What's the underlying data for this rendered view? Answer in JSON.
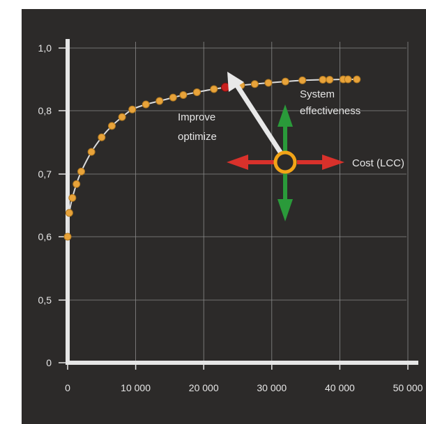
{
  "chart_data": {
    "type": "scatter",
    "xlim": [
      0,
      50000
    ],
    "ylim": [
      0,
      1.0
    ],
    "x_ticks": [
      0,
      10000,
      20000,
      30000,
      40000,
      50000
    ],
    "x_tick_labels": [
      "0",
      "10 000",
      "20 000",
      "30 000",
      "40 000",
      "50 000"
    ],
    "y_ticks": [
      0,
      0.5,
      0.6,
      0.7,
      0.8,
      1.0
    ],
    "y_tick_labels": [
      "0",
      "0,5",
      "0,6",
      "0,7",
      "0,8",
      "1,0"
    ],
    "grid": true,
    "points": [
      {
        "x": 0,
        "y": 0.6
      },
      {
        "x": 250,
        "y": 0.638
      },
      {
        "x": 700,
        "y": 0.662
      },
      {
        "x": 1300,
        "y": 0.684
      },
      {
        "x": 2000,
        "y": 0.704
      },
      {
        "x": 3500,
        "y": 0.735
      },
      {
        "x": 5000,
        "y": 0.758
      },
      {
        "x": 6500,
        "y": 0.776
      },
      {
        "x": 8000,
        "y": 0.79
      },
      {
        "x": 9500,
        "y": 0.804
      },
      {
        "x": 11500,
        "y": 0.82
      },
      {
        "x": 13500,
        "y": 0.831
      },
      {
        "x": 15500,
        "y": 0.842
      },
      {
        "x": 17000,
        "y": 0.85
      },
      {
        "x": 19000,
        "y": 0.859
      },
      {
        "x": 21500,
        "y": 0.869
      },
      {
        "x": 25500,
        "y": 0.881
      },
      {
        "x": 27500,
        "y": 0.885
      },
      {
        "x": 29500,
        "y": 0.889
      },
      {
        "x": 32000,
        "y": 0.893
      },
      {
        "x": 34500,
        "y": 0.897
      },
      {
        "x": 37500,
        "y": 0.899
      },
      {
        "x": 38500,
        "y": 0.899
      },
      {
        "x": 40500,
        "y": 0.9
      },
      {
        "x": 41200,
        "y": 0.9
      },
      {
        "x": 42500,
        "y": 0.9
      }
    ],
    "highlight_point": {
      "x": 23200,
      "y": 0.875
    },
    "colors": {
      "background": "#2c2a29",
      "axis": "#e6e6e6",
      "grid": "#8a8a8a",
      "curve": "#dcdcdc",
      "point": "#e8a33a",
      "highlight": "#c8201e",
      "text": "#e6e6e6",
      "arrow_cost": "#d9312b",
      "arrow_effectiveness": "#2a9a3a",
      "arrow_improve": "#e8e8e8",
      "ring": "#f2a417"
    }
  },
  "annotations": {
    "improve_line1": "Improve",
    "improve_line2": "optimize",
    "system_line1": "System",
    "system_line2": "effectiveness",
    "cost": "Cost (LCC)"
  }
}
